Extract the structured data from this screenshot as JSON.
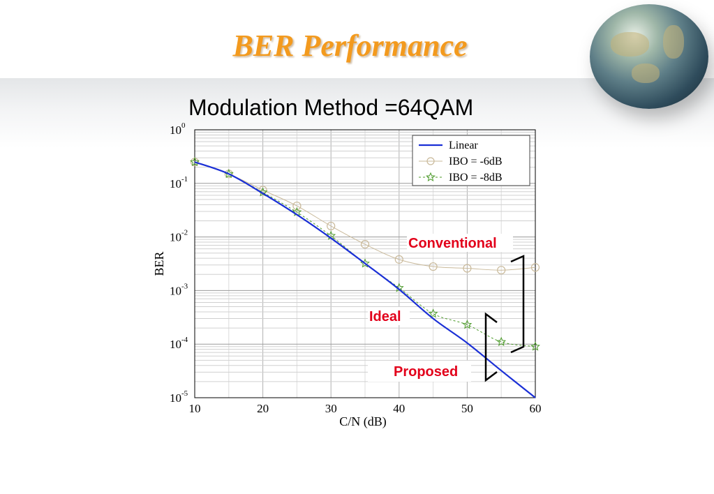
{
  "title": "BER Performance",
  "chart_data": {
    "type": "line",
    "title": "Modulation Method =64QAM",
    "xlabel": "C/N (dB)",
    "ylabel": "BER",
    "xlim": [
      10,
      60
    ],
    "ylim": [
      1e-05,
      1
    ],
    "yscale": "log",
    "grid": true,
    "legend_position": "top-right",
    "x_ticks": [
      "10",
      "20",
      "30",
      "40",
      "50",
      "60"
    ],
    "y_ticks": [
      {
        "base": "10",
        "exp": "0"
      },
      {
        "base": "10",
        "exp": "-1"
      },
      {
        "base": "10",
        "exp": "-2"
      },
      {
        "base": "10",
        "exp": "-3"
      },
      {
        "base": "10",
        "exp": "-4"
      },
      {
        "base": "10",
        "exp": "-5"
      }
    ],
    "series": [
      {
        "name": "Linear",
        "color": "#1a2fd6",
        "marker": "none",
        "x": [
          10,
          15,
          20,
          25,
          30,
          35,
          40,
          45,
          50,
          55,
          60
        ],
        "y": [
          0.25,
          0.15,
          0.065,
          0.026,
          0.0095,
          0.0032,
          0.00105,
          0.0003,
          0.000105,
          3.2e-05,
          1e-05
        ]
      },
      {
        "name": "IBO = -6dB",
        "color": "#c9b99a",
        "marker": "circle",
        "x": [
          10,
          15,
          20,
          25,
          30,
          35,
          40,
          45,
          50,
          55,
          60
        ],
        "y": [
          0.25,
          0.15,
          0.075,
          0.038,
          0.016,
          0.0073,
          0.0038,
          0.0028,
          0.0026,
          0.0024,
          0.0027
        ]
      },
      {
        "name": "IBO = -8dB",
        "color": "#4c9a2a",
        "marker": "star",
        "x": [
          10,
          15,
          20,
          25,
          30,
          35,
          40,
          45,
          50,
          55,
          60
        ],
        "y": [
          0.25,
          0.15,
          0.068,
          0.029,
          0.0105,
          0.0032,
          0.00112,
          0.00037,
          0.00023,
          0.00011,
          9e-05
        ]
      }
    ],
    "annotations": [
      "Conventional",
      "Ideal",
      "Proposed"
    ]
  }
}
